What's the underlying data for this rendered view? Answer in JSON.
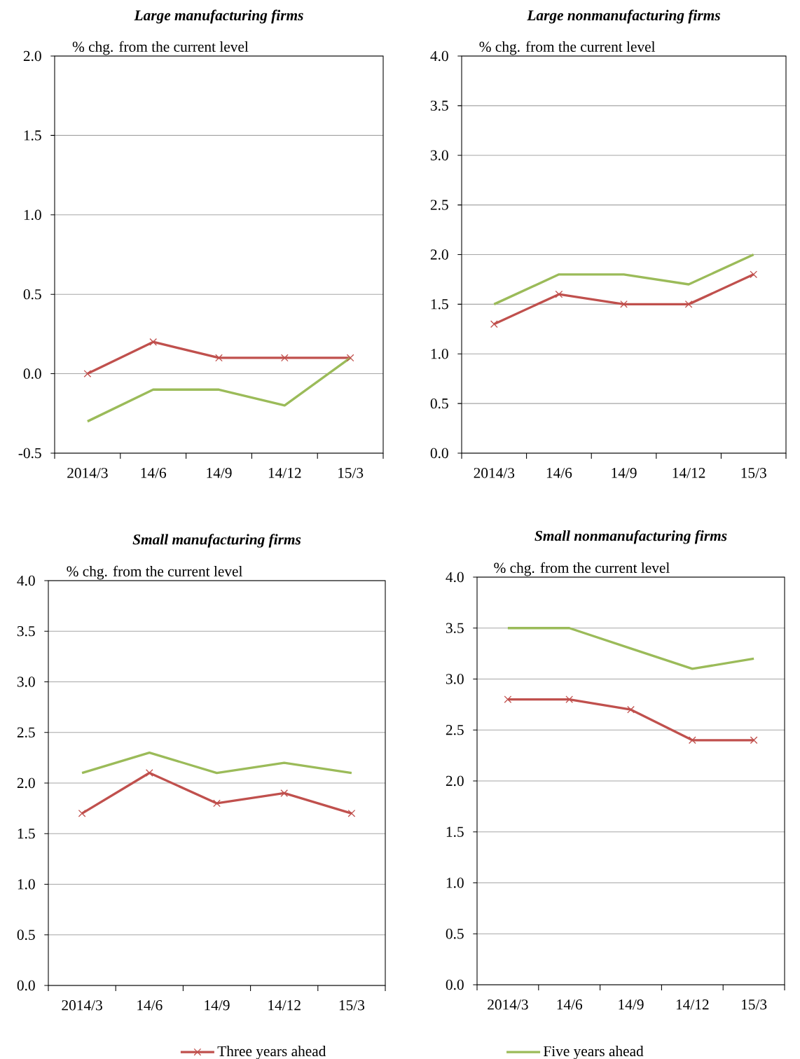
{
  "chart_data": [
    {
      "type": "line",
      "title": "Large manufacturing firms",
      "ylabel": "% chg. from the current level",
      "categories": [
        "2014/3",
        "14/6",
        "14/9",
        "14/12",
        "15/3"
      ],
      "series": [
        {
          "color": "#c0504d",
          "marker": "cross",
          "values": [
            0.0,
            0.2,
            0.1,
            0.1,
            0.1
          ]
        },
        {
          "color": "#9bbb59",
          "marker": "none",
          "values": [
            -0.3,
            -0.1,
            -0.1,
            -0.2,
            0.1
          ]
        }
      ],
      "ylim": [
        -0.5,
        2.0
      ],
      "yticks": [
        {
          "value": -0.5,
          "label": "-0.5"
        },
        {
          "value": 0,
          "label": "0.0"
        },
        {
          "value": 0.5,
          "label": "0.5"
        },
        {
          "value": 1,
          "label": "1.0"
        },
        {
          "value": 1.5,
          "label": "1.5"
        },
        {
          "value": 2,
          "label": "2.0"
        }
      ],
      "grid": "y"
    },
    {
      "type": "line",
      "title": "Large nonmanufacturing firms",
      "ylabel": "% chg. from the current level",
      "categories": [
        "2014/3",
        "14/6",
        "14/9",
        "14/12",
        "15/3"
      ],
      "series": [
        {
          "color": "#c0504d",
          "marker": "cross",
          "values": [
            1.3,
            1.6,
            1.5,
            1.5,
            1.8
          ]
        },
        {
          "color": "#9bbb59",
          "marker": "none",
          "values": [
            1.5,
            1.8,
            1.8,
            1.7,
            2.0
          ]
        }
      ],
      "ylim": [
        0,
        4
      ],
      "yticks": [
        {
          "value": 0,
          "label": "0.0"
        },
        {
          "value": 0.5,
          "label": "0.5"
        },
        {
          "value": 1,
          "label": "1.0"
        },
        {
          "value": 1.5,
          "label": "1.5"
        },
        {
          "value": 2,
          "label": "2.0"
        },
        {
          "value": 2.5,
          "label": "2.5"
        },
        {
          "value": 3,
          "label": "3.0"
        },
        {
          "value": 3.5,
          "label": "3.5"
        },
        {
          "value": 4,
          "label": "4.0"
        }
      ],
      "grid": "y"
    },
    {
      "type": "line",
      "title": "Small manufacturing firms",
      "ylabel": "% chg. from the current level",
      "categories": [
        "2014/3",
        "14/6",
        "14/9",
        "14/12",
        "15/3"
      ],
      "series": [
        {
          "color": "#c0504d",
          "marker": "cross",
          "values": [
            1.7,
            2.1,
            1.8,
            1.9,
            1.7
          ]
        },
        {
          "color": "#9bbb59",
          "marker": "none",
          "values": [
            2.1,
            2.3,
            2.1,
            2.2,
            2.1
          ]
        }
      ],
      "ylim": [
        0,
        4
      ],
      "yticks": [
        {
          "value": 0,
          "label": "0.0"
        },
        {
          "value": 0.5,
          "label": "0.5"
        },
        {
          "value": 1,
          "label": "1.0"
        },
        {
          "value": 1.5,
          "label": "1.5"
        },
        {
          "value": 2,
          "label": "2.0"
        },
        {
          "value": 2.5,
          "label": "2.5"
        },
        {
          "value": 3,
          "label": "3.0"
        },
        {
          "value": 3.5,
          "label": "3.5"
        },
        {
          "value": 4,
          "label": "4.0"
        }
      ],
      "grid": "y"
    },
    {
      "type": "line",
      "title": "Small nonmanufacturing firms",
      "ylabel": "% chg. from the current level",
      "categories": [
        "2014/3",
        "14/6",
        "14/9",
        "14/12",
        "15/3"
      ],
      "series": [
        {
          "name": "Three years ahead",
          "color": "#c0504d",
          "marker": "cross",
          "values": [
            2.8,
            2.8,
            2.7,
            2.4,
            2.4
          ]
        },
        {
          "name": "Five years ahead",
          "color": "#9bbb59",
          "marker": "none",
          "values": [
            3.5,
            3.5,
            3.3,
            3.1,
            3.2
          ]
        }
      ],
      "ylim": [
        0,
        4
      ],
      "yticks": [
        {
          "value": 0,
          "label": "0.0"
        },
        {
          "value": 0.5,
          "label": "0.5"
        },
        {
          "value": 1,
          "label": "1.0"
        },
        {
          "value": 1.5,
          "label": "1.5"
        },
        {
          "value": 2,
          "label": "2.0"
        },
        {
          "value": 2.5,
          "label": "2.5"
        },
        {
          "value": 3,
          "label": "3.0"
        },
        {
          "value": 3.5,
          "label": "3.5"
        },
        {
          "value": 4,
          "label": "4.0"
        }
      ],
      "grid": "y",
      "legend": "bottom"
    }
  ]
}
